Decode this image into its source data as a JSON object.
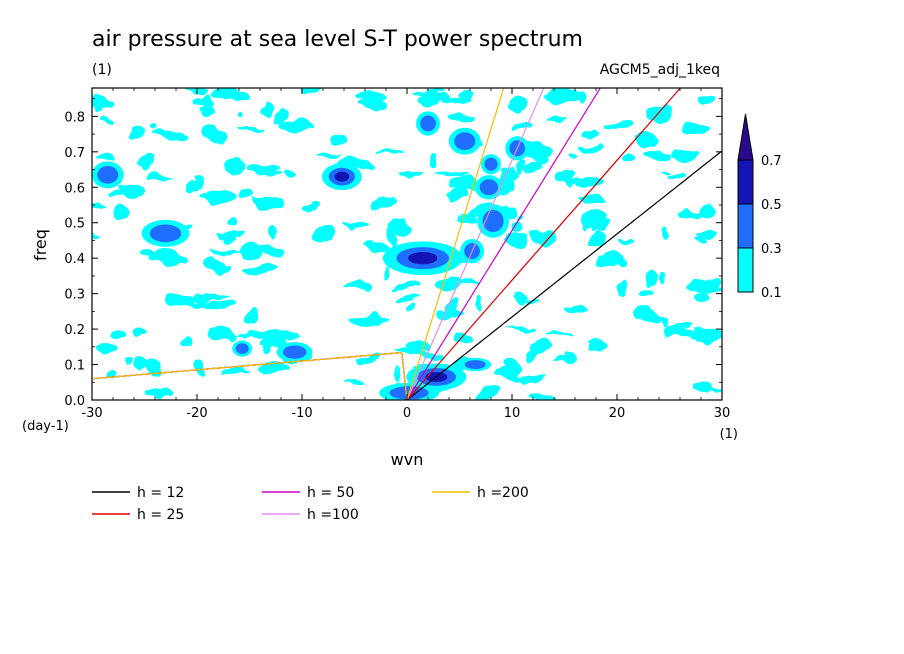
{
  "chart_data": {
    "type": "contour",
    "title": "air pressure at sea level S-T power spectrum",
    "subtitle_left": "(1)",
    "subtitle_right": "AGCM5_adj_1keq",
    "xlabel": "wvn",
    "ylabel": "freq",
    "x_unit": "(1)",
    "y_unit": "(day-1)",
    "xlim": [
      -30,
      30
    ],
    "ylim": [
      0,
      0.88
    ],
    "xticks": [
      -30,
      -20,
      -10,
      0,
      10,
      20,
      30
    ],
    "xtick_labels": [
      "-30",
      "-20",
      "-10",
      "0",
      "10",
      "20",
      "30"
    ],
    "yticks": [
      0.0,
      0.1,
      0.2,
      0.3,
      0.4,
      0.5,
      0.6,
      0.7,
      0.8
    ],
    "ytick_labels": [
      "0.0",
      "0.1",
      "0.2",
      "0.3",
      "0.4",
      "0.5",
      "0.6",
      "0.7",
      "0.8"
    ],
    "colorbar": {
      "levels": [
        0.1,
        0.3,
        0.5,
        0.7
      ],
      "level_labels": [
        "0.1",
        "0.3",
        "0.5",
        "0.7"
      ],
      "colors": [
        "#00ffff",
        "#1f6eff",
        "#1414b4",
        "#2a0a8c"
      ]
    },
    "series": [
      {
        "name": "h = 12",
        "color": "#000000",
        "equiv_depth": 12
      },
      {
        "name": "h = 25",
        "color": "#e00000",
        "equiv_depth": 25
      },
      {
        "name": "h = 50",
        "color": "#d000c0",
        "equiv_depth": 50
      },
      {
        "name": "h =100",
        "color": "#e090e8",
        "equiv_depth": 100
      },
      {
        "name": "h =200",
        "color": "#f0c000",
        "equiv_depth": 200
      }
    ],
    "contour_blobs": [
      {
        "x": 1.5,
        "y": 0.4,
        "rx": 2.0,
        "ry": 0.025,
        "level": 2
      },
      {
        "x": 2.8,
        "y": 0.065,
        "rx": 1.5,
        "ry": 0.02,
        "level": 2
      },
      {
        "x": 0.2,
        "y": 0.02,
        "rx": 1.5,
        "ry": 0.015,
        "level": 1
      },
      {
        "x": -23,
        "y": 0.47,
        "rx": 1.2,
        "ry": 0.02,
        "level": 1
      },
      {
        "x": -6.2,
        "y": 0.63,
        "rx": 1.0,
        "ry": 0.02,
        "level": 2
      },
      {
        "x": -28.5,
        "y": 0.635,
        "rx": 0.8,
        "ry": 0.02,
        "level": 1
      },
      {
        "x": 5.5,
        "y": 0.73,
        "rx": 0.8,
        "ry": 0.02,
        "level": 1
      },
      {
        "x": 8.2,
        "y": 0.505,
        "rx": 0.8,
        "ry": 0.025,
        "level": 1
      },
      {
        "x": 6.5,
        "y": 0.1,
        "rx": 0.8,
        "ry": 0.01,
        "level": 1
      },
      {
        "x": -10.7,
        "y": 0.135,
        "rx": 0.9,
        "ry": 0.015,
        "level": 1
      },
      {
        "x": 2.0,
        "y": 0.78,
        "rx": 0.6,
        "ry": 0.018,
        "level": 1
      },
      {
        "x": 7.8,
        "y": 0.6,
        "rx": 0.7,
        "ry": 0.018,
        "level": 1
      },
      {
        "x": 10.5,
        "y": 0.71,
        "rx": 0.6,
        "ry": 0.018,
        "level": 1
      },
      {
        "x": 6.2,
        "y": 0.42,
        "rx": 0.6,
        "ry": 0.018,
        "level": 1
      },
      {
        "x": 8.0,
        "y": 0.665,
        "rx": 0.5,
        "ry": 0.015,
        "level": 1
      },
      {
        "x": -15.7,
        "y": 0.145,
        "rx": 0.5,
        "ry": 0.012,
        "level": 1
      }
    ]
  }
}
